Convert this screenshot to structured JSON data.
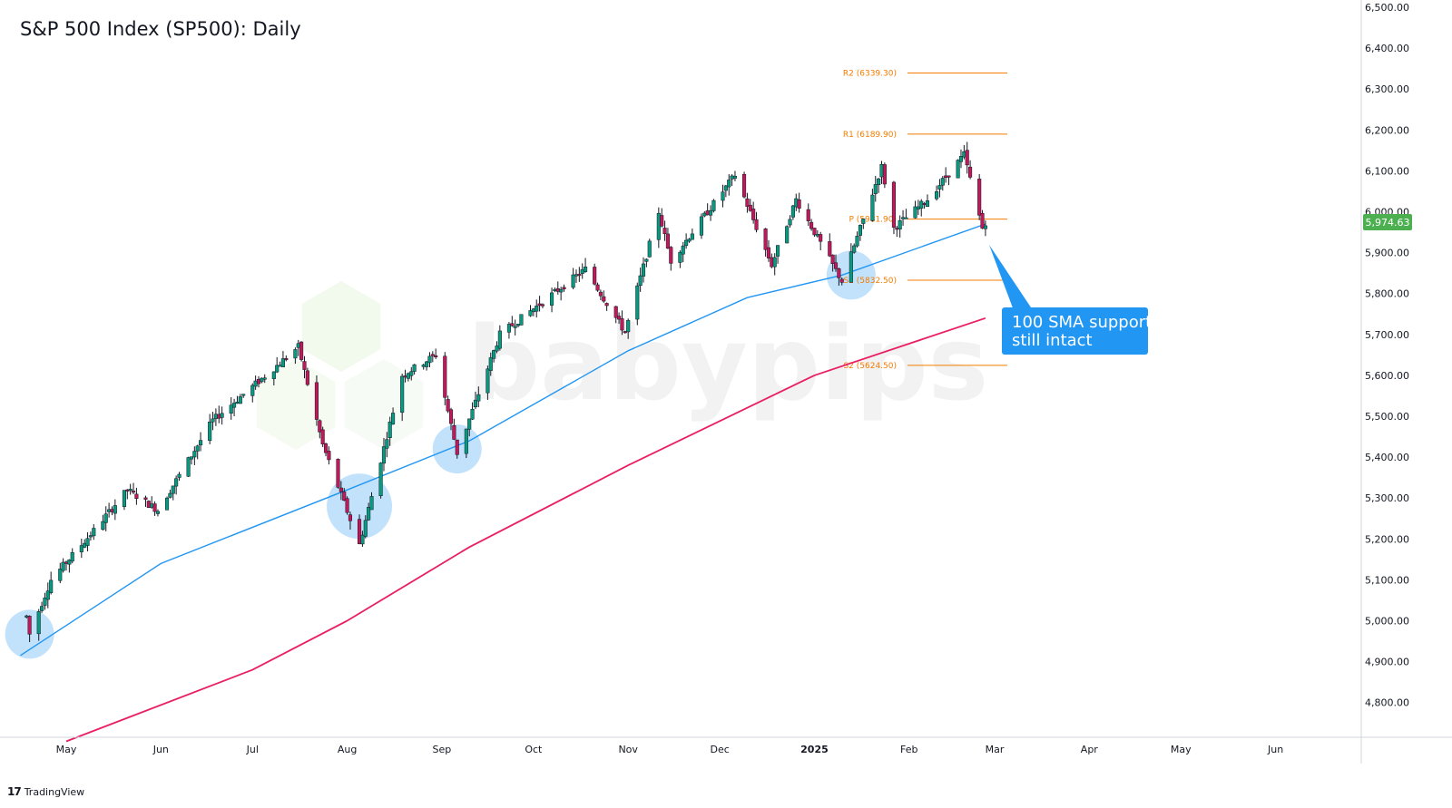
{
  "chart_data": {
    "type": "candlestick",
    "title": "S&P 500 Index (SP500): Daily",
    "ylim": [
      4700,
      6500
    ],
    "y_ticks": [
      "6,500.00",
      "6,400.00",
      "6,300.00",
      "6,200.00",
      "6,100.00",
      "6,000.00",
      "5,900.00",
      "5,800.00",
      "5,700.00",
      "5,600.00",
      "5,500.00",
      "5,400.00",
      "5,300.00",
      "5,200.00",
      "5,100.00",
      "5,000.00",
      "4,900.00",
      "4,800.00"
    ],
    "x_ticks": [
      "May",
      "Jun",
      "Jul",
      "Aug",
      "Sep",
      "Oct",
      "Nov",
      "Dec",
      "2025",
      "Feb",
      "Mar",
      "Apr",
      "May",
      "Jun"
    ],
    "last_price_label": "5,974.63",
    "last_price": 5974.63,
    "pivot_levels": [
      {
        "label": "R2 (6339.30)",
        "value": 6339.3
      },
      {
        "label": "R1 (6189.90)",
        "value": 6189.9
      },
      {
        "label": "P (5981.90)",
        "value": 5981.9
      },
      {
        "label": "S1 (5832.50)",
        "value": 5832.5
      },
      {
        "label": "S2 (5624.50)",
        "value": 5624.5
      }
    ],
    "price_path": [
      [
        "Apr 18",
        5011
      ],
      [
        "Apr 19",
        4967
      ],
      [
        "Apr 26",
        5100
      ],
      [
        "May 10",
        5220
      ],
      [
        "May 21",
        5320
      ],
      [
        "May 31",
        5270
      ],
      [
        "Jun 18",
        5490
      ],
      [
        "Jul 10",
        5630
      ],
      [
        "Jul 16",
        5670
      ],
      [
        "Jul 24",
        5430
      ],
      [
        "Aug 5",
        5186
      ],
      [
        "Aug 19",
        5600
      ],
      [
        "Aug 30",
        5650
      ],
      [
        "Sep 6",
        5410
      ],
      [
        "Sep 20",
        5700
      ],
      [
        "Oct 18",
        5860
      ],
      [
        "Oct 31",
        5705
      ],
      [
        "Nov 11",
        6000
      ],
      [
        "Nov 15",
        5880
      ],
      [
        "Dec 6",
        6090
      ],
      [
        "Dec 18",
        5870
      ],
      [
        "Dec 26",
        6030
      ],
      [
        "Jan 10",
        5830
      ],
      [
        "Jan 23",
        6110
      ],
      [
        "Jan 27",
        5960
      ],
      [
        "Feb 7",
        6030
      ],
      [
        "Feb 19",
        6140
      ],
      [
        "Feb 25",
        5960
      ],
      [
        "Feb 26",
        5974.63
      ]
    ],
    "series": [
      {
        "name": "",
        "color": "#2196f3",
        "points": [
          [
            "Apr 16",
            4915
          ],
          [
            "Jun 1",
            5140
          ],
          [
            "Aug 1",
            5320
          ],
          [
            "Sep 10",
            5440
          ],
          [
            "Nov 1",
            5660
          ],
          [
            "Dec 10",
            5790
          ],
          [
            "Jan 10",
            5845
          ],
          [
            "Feb 26",
            5970
          ]
        ]
      },
      {
        "name": "",
        "color": "#e91e63",
        "points": [
          [
            "May 1",
            4705
          ],
          [
            "Jul 1",
            4880
          ],
          [
            "Aug 1",
            5000
          ],
          [
            "Sep 10",
            5180
          ],
          [
            "Nov 1",
            5380
          ],
          [
            "Jan 1",
            5600
          ],
          [
            "Feb 26",
            5740
          ]
        ]
      }
    ],
    "highlights": [
      {
        "date": "Apr 19",
        "value": 4967
      },
      {
        "date": "Aug 5",
        "value": 5280
      },
      {
        "date": "Sep 6",
        "value": 5420
      },
      {
        "date": "Jan 13",
        "value": 5845
      }
    ],
    "annotations": [
      {
        "text": "100 SMA support still intact",
        "line1": "100 SMA support",
        "line2": "still intact",
        "color": "#2196f3"
      }
    ]
  },
  "branding": {
    "watermark": "babypips",
    "footer_logo": "17",
    "footer_text": "TradingView"
  },
  "colors": {
    "up": "#089981",
    "down": "#c2185b",
    "pivot": "#f57c00",
    "sma100": "#2196f3",
    "sma200": "#e91e63",
    "highlight": "#90caf9",
    "last_price_bg": "#4caf50",
    "watermark": "#e8f5e0"
  }
}
